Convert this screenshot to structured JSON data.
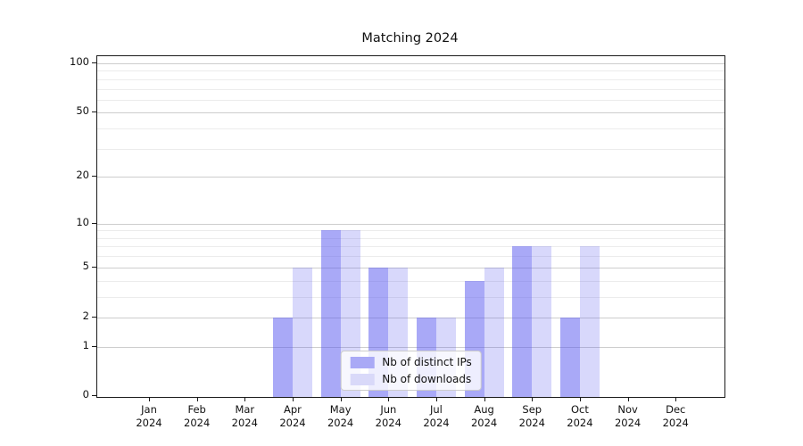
{
  "chart_data": {
    "type": "bar",
    "title": "Matching 2024",
    "xlabel": "",
    "ylabel": "",
    "yscale": "log1p",
    "ylim": [
      0,
      111
    ],
    "grid": true,
    "legend_position": "lower center",
    "year_label": "2024",
    "categories": [
      "Jan",
      "Feb",
      "Mar",
      "Apr",
      "May",
      "Jun",
      "Jul",
      "Aug",
      "Sep",
      "Oct",
      "Nov",
      "Dec"
    ],
    "y_major_ticks": [
      0,
      1,
      2,
      5,
      10,
      20,
      50,
      100
    ],
    "y_minor_gridlines": [
      3,
      4,
      6,
      7,
      8,
      9,
      30,
      40,
      60,
      70,
      80,
      90
    ],
    "series": [
      {
        "name": "Nb of distinct IPs",
        "slug": "distinct-ips",
        "color": "#a9a9f6",
        "bar_color": "rgba(90,90,240,0.52)",
        "values": [
          0,
          0,
          0,
          2,
          9,
          5,
          2,
          4,
          7,
          2,
          0,
          0
        ]
      },
      {
        "name": "Nb of downloads",
        "slug": "downloads",
        "color": "#d9d9f9",
        "bar_color": "rgba(90,90,240,0.24)",
        "values": [
          0,
          0,
          0,
          5,
          9,
          5,
          2,
          5,
          7,
          7,
          0,
          0
        ]
      }
    ]
  },
  "colors": {
    "background": "#ffffff",
    "axis": "#1a1a1a",
    "grid_major": "#cdcdcd",
    "grid_minor": "#ececec",
    "text": "#111111"
  }
}
